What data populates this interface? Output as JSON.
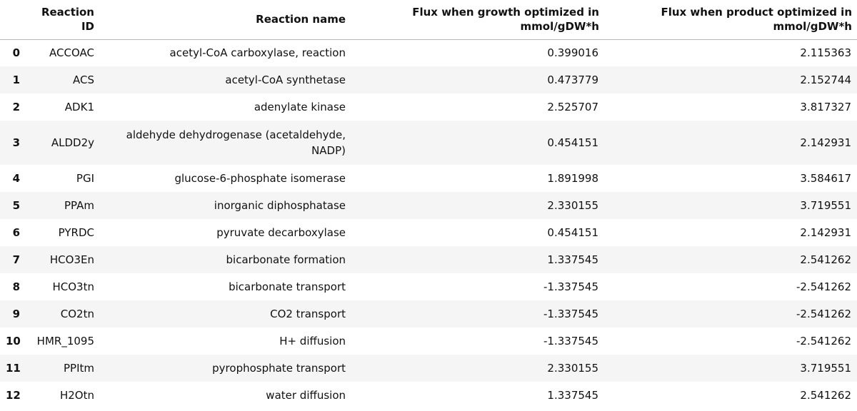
{
  "table": {
    "headers": {
      "index": "",
      "reaction_id": "Reaction ID",
      "reaction_name": "Reaction name",
      "flux_growth": "Flux when growth optimized in mmol/gDW*h",
      "flux_product": "Flux when product optimized in mmol/gDW*h"
    },
    "rows": [
      {
        "index": "0",
        "id": "ACCOAC",
        "name": "acetyl-CoA carboxylase, reaction",
        "growth": "0.399016",
        "product": "2.115363"
      },
      {
        "index": "1",
        "id": "ACS",
        "name": "acetyl-CoA synthetase",
        "growth": "0.473779",
        "product": "2.152744"
      },
      {
        "index": "2",
        "id": "ADK1",
        "name": "adenylate kinase",
        "growth": "2.525707",
        "product": "3.817327"
      },
      {
        "index": "3",
        "id": "ALDD2y",
        "name": "aldehyde dehydrogenase (acetaldehyde, NADP)",
        "growth": "0.454151",
        "product": "2.142931"
      },
      {
        "index": "4",
        "id": "PGI",
        "name": "glucose-6-phosphate isomerase",
        "growth": "1.891998",
        "product": "3.584617"
      },
      {
        "index": "5",
        "id": "PPAm",
        "name": "inorganic diphosphatase",
        "growth": "2.330155",
        "product": "3.719551"
      },
      {
        "index": "6",
        "id": "PYRDC",
        "name": "pyruvate decarboxylase",
        "growth": "0.454151",
        "product": "2.142931"
      },
      {
        "index": "7",
        "id": "HCO3En",
        "name": "bicarbonate formation",
        "growth": "1.337545",
        "product": "2.541262"
      },
      {
        "index": "8",
        "id": "HCO3tn",
        "name": "bicarbonate transport",
        "growth": "-1.337545",
        "product": "-2.541262"
      },
      {
        "index": "9",
        "id": "CO2tn",
        "name": "CO2 transport",
        "growth": "-1.337545",
        "product": "-2.541262"
      },
      {
        "index": "10",
        "id": "HMR_1095",
        "name": "H+ diffusion",
        "growth": "-1.337545",
        "product": "-2.541262"
      },
      {
        "index": "11",
        "id": "PPItm",
        "name": "pyrophosphate transport",
        "growth": "2.330155",
        "product": "3.719551"
      },
      {
        "index": "12",
        "id": "H2Otn",
        "name": "water diffusion",
        "growth": "1.337545",
        "product": "2.541262"
      }
    ]
  }
}
